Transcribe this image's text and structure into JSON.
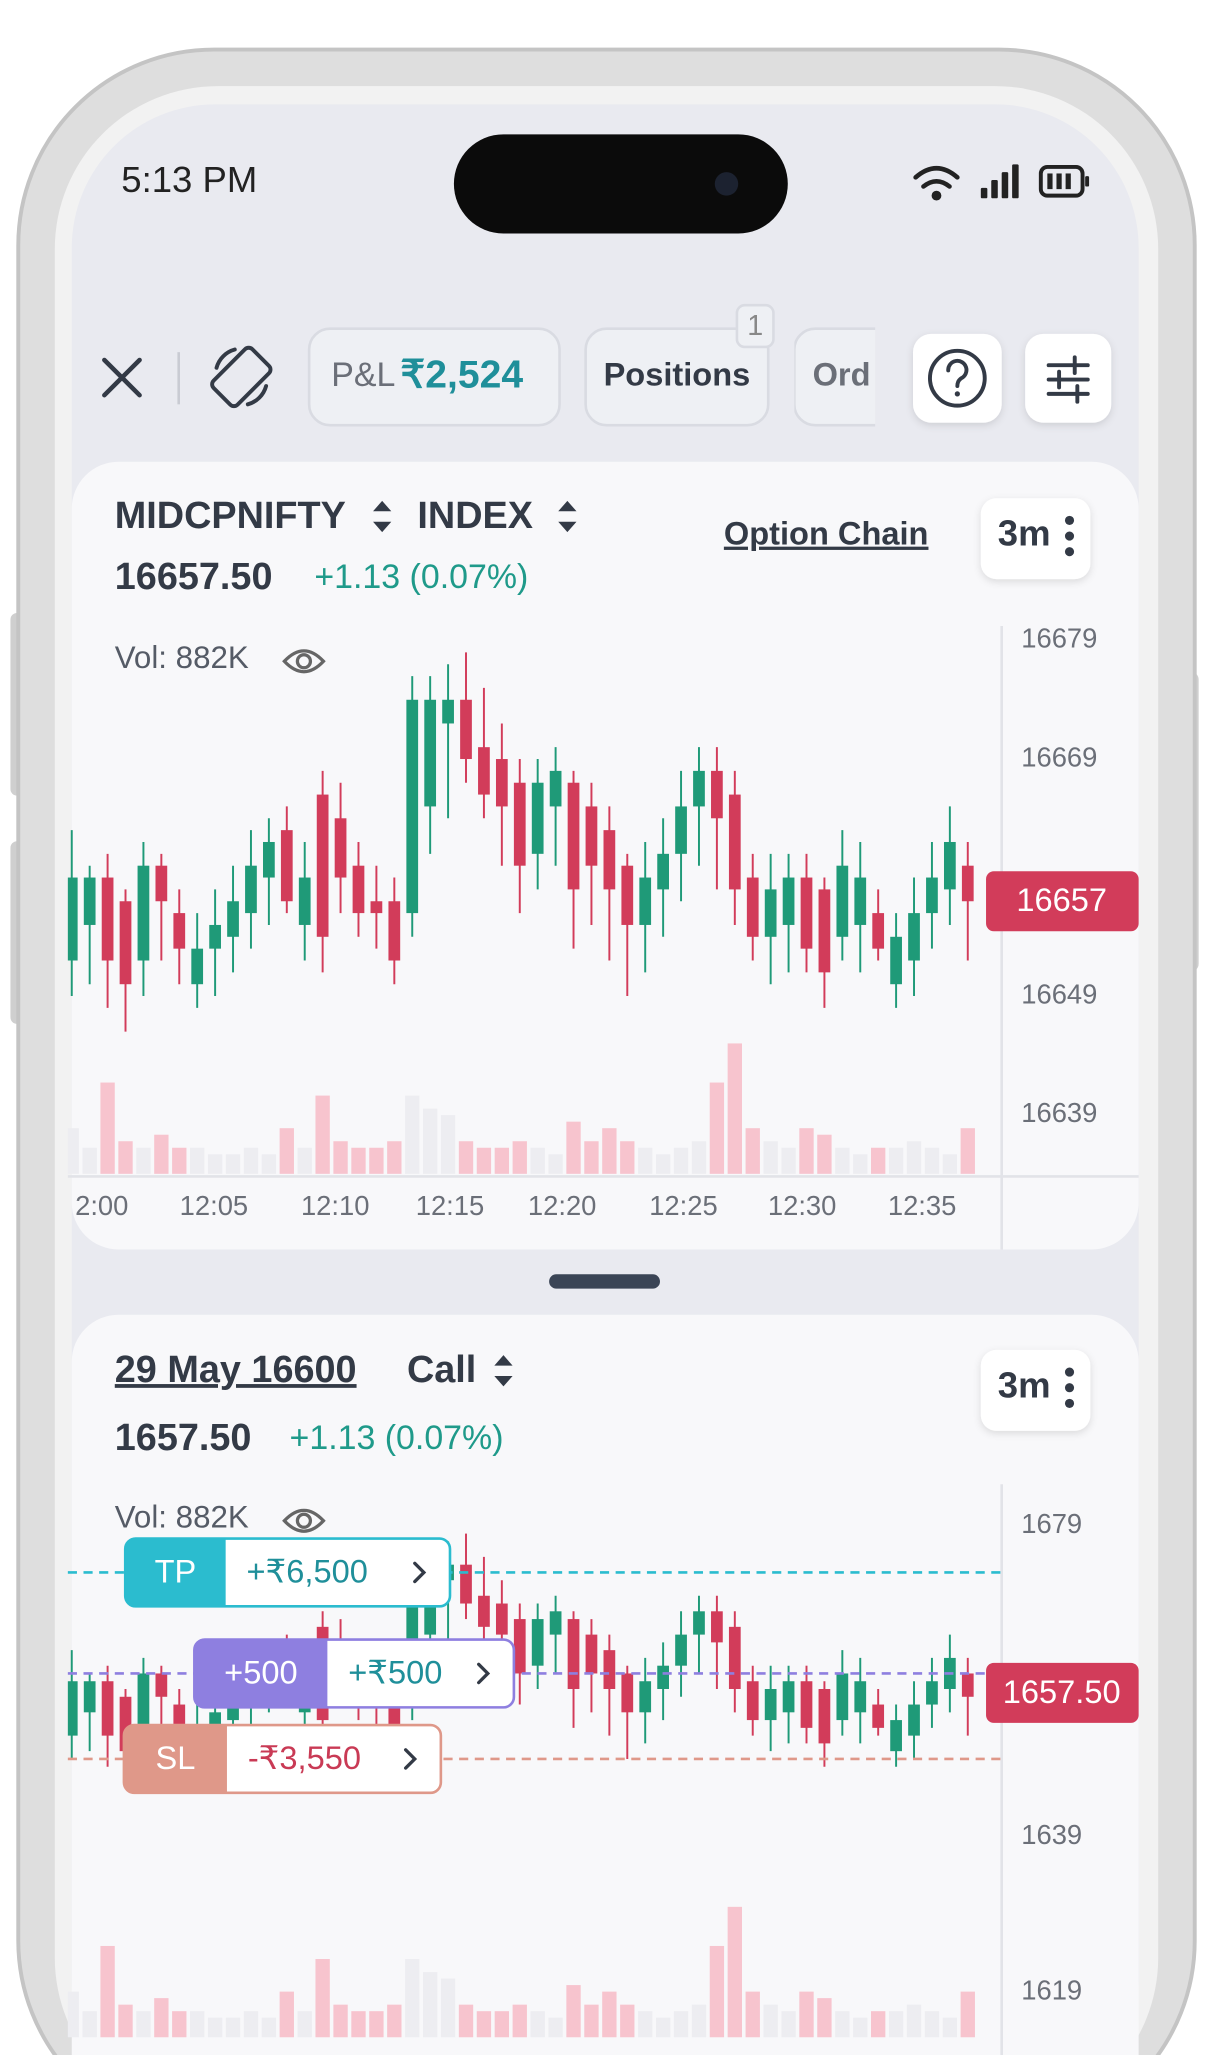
{
  "status_bar": {
    "time": "5:13 PM"
  },
  "toolbar": {
    "pnl_label": "P&L",
    "pnl_value": "₹2,524",
    "positions": "Positions",
    "positions_badge": "1",
    "orders": "Ord"
  },
  "charts": [
    {
      "type": "candlestick",
      "symbol": "MIDCPNIFTY",
      "segment": "INDEX",
      "option_chain": "Option Chain",
      "interval": "3m",
      "price": "16657.50",
      "change": "+1.13 (0.07%)",
      "volume_label": "Vol: 882K",
      "up_color": "#1f9a78",
      "down_color": "#d23c5a",
      "ylim": [
        16634,
        16680
      ],
      "yticks": [
        16679,
        16669,
        16649,
        16639
      ],
      "last_price": 16657,
      "xlabels": [
        "2:00",
        "12:05",
        "12:10",
        "12:15",
        "12:20",
        "12:25",
        "12:30",
        "12:35"
      ],
      "candles": {
        "open": [
          16652,
          16655,
          16659,
          16657,
          16652,
          16660,
          16656,
          16650,
          16653,
          16654,
          16656,
          16659,
          16663,
          16655,
          16666,
          16664,
          16660,
          16657,
          16657,
          16656,
          16665,
          16672,
          16674,
          16670,
          16669,
          16667,
          16661,
          16665,
          16667,
          16665,
          16663,
          16660,
          16655,
          16658,
          16661,
          16665,
          16668,
          16666,
          16659,
          16654,
          16655,
          16659,
          16658,
          16654,
          16655,
          16656,
          16650,
          16652,
          16656,
          16658,
          16660
        ],
        "high": [
          16663,
          16660,
          16661,
          16658,
          16662,
          16661,
          16658,
          16656,
          16658,
          16660,
          16663,
          16664,
          16665,
          16662,
          16668,
          16667,
          16662,
          16660,
          16659,
          16676,
          16676,
          16677,
          16678,
          16675,
          16672,
          16669,
          16669,
          16670,
          16668,
          16667,
          16665,
          16661,
          16662,
          16664,
          16668,
          16670,
          16670,
          16668,
          16661,
          16661,
          16661,
          16661,
          16659,
          16663,
          16662,
          16658,
          16656,
          16659,
          16662,
          16665,
          16662
        ],
        "low": [
          16649,
          16650,
          16648,
          16646,
          16649,
          16652,
          16650,
          16648,
          16649,
          16651,
          16653,
          16655,
          16656,
          16652,
          16651,
          16656,
          16654,
          16653,
          16650,
          16654,
          16661,
          16664,
          16667,
          16664,
          16660,
          16656,
          16658,
          16660,
          16653,
          16655,
          16652,
          16649,
          16651,
          16654,
          16657,
          16660,
          16658,
          16655,
          16652,
          16650,
          16651,
          16651,
          16648,
          16652,
          16651,
          16652,
          16648,
          16649,
          16653,
          16655,
          16652
        ],
        "close": [
          16659,
          16659,
          16652,
          16650,
          16660,
          16657,
          16653,
          16653,
          16655,
          16657,
          16660,
          16662,
          16657,
          16659,
          16654,
          16659,
          16656,
          16656,
          16652,
          16674,
          16674,
          16674,
          16669,
          16666,
          16665,
          16660,
          16667,
          16668,
          16658,
          16660,
          16658,
          16655,
          16659,
          16661,
          16665,
          16668,
          16664,
          16658,
          16654,
          16658,
          16659,
          16653,
          16651,
          16660,
          16659,
          16653,
          16654,
          16656,
          16659,
          16662,
          16657
        ]
      },
      "volumes": [
        35,
        20,
        70,
        25,
        20,
        30,
        20,
        20,
        15,
        15,
        20,
        15,
        35,
        20,
        60,
        25,
        20,
        20,
        25,
        60,
        50,
        45,
        25,
        20,
        20,
        25,
        20,
        15,
        40,
        25,
        35,
        25,
        20,
        15,
        20,
        25,
        70,
        100,
        35,
        25,
        20,
        35,
        30,
        20,
        15,
        20,
        20,
        25,
        20,
        15,
        35
      ]
    },
    {
      "type": "candlestick",
      "contract": "29 May 16600",
      "option_type": "Call",
      "interval": "3m",
      "price": "1657.50",
      "change": "+1.13 (0.07%)",
      "volume_label": "Vol: 882K",
      "up_color": "#1f9a78",
      "down_color": "#d23c5a",
      "ylim": [
        1611,
        1682
      ],
      "yticks": [
        1679,
        1639,
        1619
      ],
      "last_price": {
        "value": 1657.5,
        "label": "1657.50"
      },
      "candles": {
        "open": [
          1652,
          1655,
          1659,
          1657,
          1652,
          1660,
          1656,
          1650,
          1653,
          1654,
          1656,
          1659,
          1663,
          1655,
          1666,
          1664,
          1660,
          1657,
          1657,
          1656,
          1665,
          1672,
          1674,
          1670,
          1669,
          1667,
          1661,
          1665,
          1667,
          1665,
          1663,
          1660,
          1655,
          1658,
          1661,
          1665,
          1668,
          1666,
          1659,
          1654,
          1655,
          1659,
          1658,
          1654,
          1655,
          1656,
          1650,
          1652,
          1656,
          1658,
          1660
        ],
        "high": [
          1663,
          1660,
          1661,
          1658,
          1662,
          1661,
          1658,
          1656,
          1658,
          1660,
          1663,
          1664,
          1665,
          1662,
          1668,
          1667,
          1662,
          1660,
          1659,
          1676,
          1676,
          1677,
          1678,
          1675,
          1672,
          1669,
          1669,
          1670,
          1668,
          1667,
          1665,
          1661,
          1662,
          1664,
          1668,
          1670,
          1670,
          1668,
          1661,
          1661,
          1661,
          1661,
          1659,
          1663,
          1662,
          1658,
          1656,
          1659,
          1662,
          1665,
          1662
        ],
        "low": [
          1649,
          1650,
          1648,
          1646,
          1649,
          1652,
          1650,
          1648,
          1649,
          1651,
          1653,
          1655,
          1656,
          1652,
          1651,
          1656,
          1654,
          1653,
          1650,
          1654,
          1661,
          1664,
          1667,
          1664,
          1660,
          1656,
          1658,
          1660,
          1653,
          1655,
          1652,
          1649,
          1651,
          1654,
          1657,
          1660,
          1658,
          1655,
          1652,
          1650,
          1651,
          1651,
          1648,
          1652,
          1651,
          1652,
          1648,
          1649,
          1653,
          1655,
          1652
        ],
        "close": [
          1659,
          1659,
          1652,
          1650,
          1660,
          1657,
          1653,
          1653,
          1655,
          1657,
          1660,
          1662,
          1657,
          1659,
          1654,
          1659,
          1656,
          1656,
          1652,
          1674,
          1674,
          1674,
          1669,
          1666,
          1665,
          1660,
          1667,
          1668,
          1658,
          1660,
          1658,
          1655,
          1659,
          1661,
          1665,
          1668,
          1664,
          1658,
          1654,
          1658,
          1659,
          1653,
          1651,
          1660,
          1659,
          1653,
          1654,
          1656,
          1659,
          1662,
          1657
        ]
      },
      "volumes": [
        35,
        20,
        70,
        25,
        20,
        30,
        20,
        20,
        15,
        15,
        20,
        15,
        35,
        20,
        60,
        25,
        20,
        20,
        25,
        60,
        50,
        45,
        25,
        20,
        20,
        25,
        20,
        15,
        40,
        25,
        35,
        25,
        20,
        15,
        20,
        25,
        70,
        100,
        35,
        25,
        20,
        35,
        30,
        20,
        15,
        20,
        20,
        25,
        20,
        15,
        35
      ],
      "orders": [
        {
          "tag": "TP",
          "pnl": "+₹6,500",
          "price": 1673,
          "color": "#2bbccf",
          "pnl_color": "#1f8f9a"
        },
        {
          "tag": "+500",
          "pnl": "+₹500",
          "price": 1660,
          "color": "#8e7fe0",
          "pnl_color": "#1f8f9a"
        },
        {
          "tag": "SL",
          "pnl": "-₹3,550",
          "price": 1649,
          "color": "#df9889",
          "pnl_color": "#c93a55"
        }
      ]
    }
  ]
}
